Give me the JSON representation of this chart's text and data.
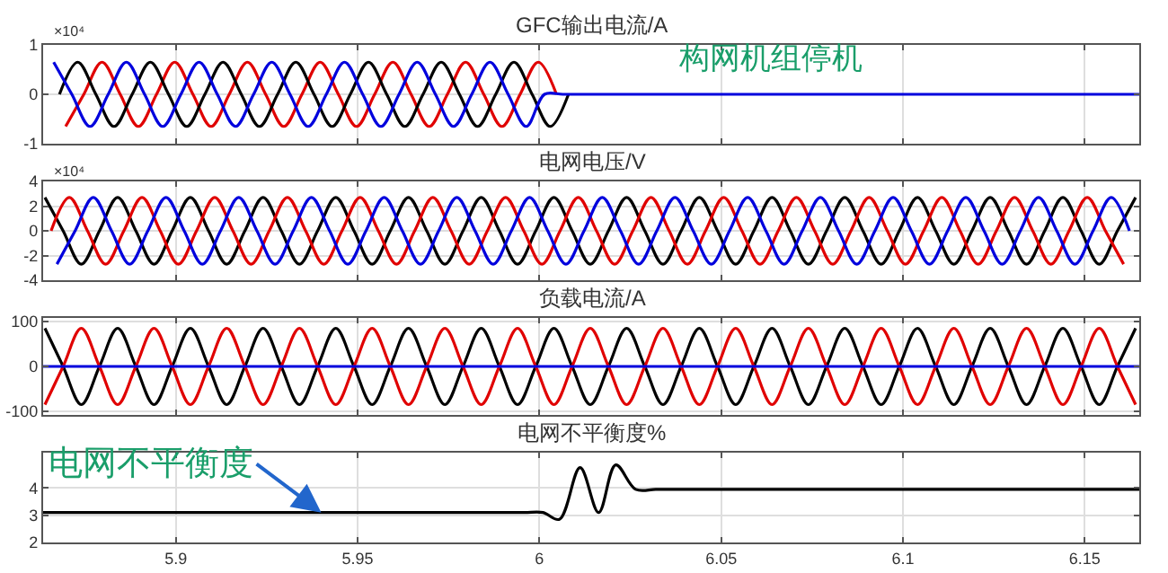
{
  "chart_data": [
    {
      "type": "line",
      "title": "GFC输出电流/A",
      "annotations": [
        "×10⁴",
        "构网机组停机"
      ],
      "xlim": [
        5.8635,
        6.165
      ],
      "xticks": [
        5.9,
        5.95,
        6,
        6.05,
        6.1,
        6.15
      ],
      "ylim": [
        -1,
        1
      ],
      "yticks": [
        -1,
        0,
        1
      ],
      "grid": true,
      "tick_labels": "y",
      "series": [
        {
          "color": "#e00000",
          "x": [
            5.8697,
            5.8747,
            5.8797,
            5.8847,
            5.8897,
            5.8947,
            5.8997,
            5.9047,
            5.9097,
            5.9147,
            5.9197,
            5.9247,
            5.9297,
            5.9347,
            5.9397,
            5.9447,
            5.9497,
            5.9547,
            5.9597,
            5.9647,
            5.9697,
            5.9747,
            5.9797,
            5.9847,
            5.9897,
            5.9947,
            5.9997,
            6.0047
          ],
          "values": [
            -0.65,
            0,
            0.65,
            0,
            -0.65,
            0,
            0.65,
            0,
            -0.65,
            0,
            0.65,
            0,
            -0.65,
            0,
            0.65,
            0,
            -0.65,
            0,
            0.65,
            0,
            -0.65,
            0,
            0.65,
            0,
            -0.65,
            0,
            0.65,
            0
          ]
        },
        {
          "color": "#000000",
          "x": [
            5.868,
            5.873,
            5.878,
            5.883,
            5.888,
            5.893,
            5.898,
            5.903,
            5.908,
            5.913,
            5.918,
            5.923,
            5.928,
            5.933,
            5.938,
            5.943,
            5.948,
            5.953,
            5.958,
            5.963,
            5.968,
            5.973,
            5.978,
            5.983,
            5.988,
            5.993,
            5.998,
            6.003,
            6.008
          ],
          "values": [
            0,
            0.65,
            0,
            -0.65,
            0,
            0.65,
            0,
            -0.65,
            0,
            0.65,
            0,
            -0.65,
            0,
            0.65,
            0,
            -0.65,
            0,
            0.65,
            0,
            -0.65,
            0,
            0.65,
            0,
            -0.65,
            0,
            0.65,
            0,
            -0.65,
            0
          ]
        },
        {
          "color": "#0000dd",
          "x": [
            5.8664,
            5.8714,
            5.8764,
            5.8814,
            5.8864,
            5.8914,
            5.8964,
            5.9014,
            5.9064,
            5.9114,
            5.9164,
            5.9214,
            5.9264,
            5.9314,
            5.9364,
            5.9414,
            5.9464,
            5.9514,
            5.9564,
            5.9614,
            5.9664,
            5.9714,
            5.9764,
            5.9814,
            5.9864,
            5.9914,
            5.9964,
            6.0014,
            6.0064,
            6.0114,
            6.02,
            6.05,
            6.1,
            6.15,
            6.165
          ],
          "values": [
            0.65,
            0,
            -0.65,
            0,
            0.65,
            0,
            -0.65,
            0,
            0.65,
            0,
            -0.65,
            0,
            0.65,
            0,
            -0.65,
            0,
            0.65,
            0,
            -0.65,
            0,
            0.65,
            0,
            -0.65,
            0,
            0.65,
            0,
            -0.65,
            0,
            0,
            0,
            0,
            0,
            0,
            0,
            0
          ]
        }
      ]
    },
    {
      "type": "line",
      "title": "电网电压/V",
      "annotations": [
        "×10⁴"
      ],
      "xlim": [
        5.8635,
        6.165
      ],
      "xticks": [
        5.9,
        5.95,
        6,
        6.05,
        6.1,
        6.15
      ],
      "ylim": [
        -4,
        4
      ],
      "yticks": [
        -4,
        -2,
        0,
        2,
        4
      ],
      "grid": true,
      "tick_labels": "y",
      "series": [
        {
          "color": "#000000",
          "x": [
            5.864,
            5.869,
            5.874,
            5.879,
            5.884,
            5.889,
            5.894,
            5.899,
            5.904,
            5.909,
            5.914,
            5.919,
            5.924,
            5.929,
            5.934,
            5.939,
            5.944,
            5.949,
            5.954,
            5.959,
            5.964,
            5.969,
            5.974,
            5.979,
            5.984,
            5.989,
            5.994,
            5.999,
            6.004,
            6.009,
            6.014,
            6.019,
            6.024,
            6.029,
            6.034,
            6.039,
            6.044,
            6.049,
            6.054,
            6.059,
            6.064,
            6.069,
            6.074,
            6.079,
            6.084,
            6.089,
            6.094,
            6.099,
            6.104,
            6.109,
            6.114,
            6.119,
            6.124,
            6.129,
            6.134,
            6.139,
            6.144,
            6.149,
            6.154,
            6.159,
            6.164
          ],
          "values": [
            2.7,
            0,
            -2.7,
            0,
            2.7,
            0,
            -2.7,
            0,
            2.7,
            0,
            -2.7,
            0,
            2.7,
            0,
            -2.7,
            0,
            2.7,
            0,
            -2.7,
            0,
            2.7,
            0,
            -2.7,
            0,
            2.7,
            0,
            -2.7,
            0,
            2.7,
            0,
            -2.7,
            0,
            2.7,
            0,
            -2.7,
            0,
            2.7,
            0,
            -2.7,
            0,
            2.7,
            0,
            -2.7,
            0,
            2.7,
            0,
            -2.7,
            0,
            2.7,
            0,
            -2.7,
            0,
            2.7,
            0,
            -2.7,
            0,
            2.7,
            0,
            -2.7,
            0,
            2.7
          ]
        },
        {
          "color": "#e00000",
          "x": [
            5.8657,
            5.8707,
            5.8757,
            5.8807,
            5.8857,
            5.8907,
            5.8957,
            5.9007,
            5.9057,
            5.9107,
            5.9157,
            5.9207,
            5.9257,
            5.9307,
            5.9357,
            5.9407,
            5.9457,
            5.9507,
            5.9557,
            5.9607,
            5.9657,
            5.9707,
            5.9757,
            5.9807,
            5.9857,
            5.9907,
            5.9957,
            6.0007,
            6.0057,
            6.0107,
            6.0157,
            6.0207,
            6.0257,
            6.0307,
            6.0357,
            6.0407,
            6.0457,
            6.0507,
            6.0557,
            6.0607,
            6.0657,
            6.0707,
            6.0757,
            6.0807,
            6.0857,
            6.0907,
            6.0957,
            6.1007,
            6.1057,
            6.1107,
            6.1157,
            6.1207,
            6.1257,
            6.1307,
            6.1357,
            6.1407,
            6.1457,
            6.1507,
            6.1557,
            6.1607
          ],
          "values": [
            0,
            2.7,
            0,
            -2.7,
            0,
            2.7,
            0,
            -2.7,
            0,
            2.7,
            0,
            -2.7,
            0,
            2.7,
            0,
            -2.7,
            0,
            2.7,
            0,
            -2.7,
            0,
            2.7,
            0,
            -2.7,
            0,
            2.7,
            0,
            -2.7,
            0,
            2.7,
            0,
            -2.7,
            0,
            2.7,
            0,
            -2.7,
            0,
            2.7,
            0,
            -2.7,
            0,
            2.7,
            0,
            -2.7,
            0,
            2.7,
            0,
            -2.7,
            0,
            2.7,
            0,
            -2.7,
            0,
            2.7,
            0,
            -2.7,
            0,
            2.7,
            0,
            -2.7
          ]
        },
        {
          "color": "#0000dd",
          "x": [
            5.8673,
            5.8723,
            5.8773,
            5.8823,
            5.8873,
            5.8923,
            5.8973,
            5.9023,
            5.9073,
            5.9123,
            5.9173,
            5.9223,
            5.9273,
            5.9323,
            5.9373,
            5.9423,
            5.9473,
            5.9523,
            5.9573,
            5.9623,
            5.9673,
            5.9723,
            5.9773,
            5.9823,
            5.9873,
            5.9923,
            5.9973,
            6.0023,
            6.0073,
            6.0123,
            6.0173,
            6.0223,
            6.0273,
            6.0323,
            6.0373,
            6.0423,
            6.0473,
            6.0523,
            6.0573,
            6.0623,
            6.0673,
            6.0723,
            6.0773,
            6.0823,
            6.0873,
            6.0923,
            6.0973,
            6.1023,
            6.1073,
            6.1123,
            6.1173,
            6.1223,
            6.1273,
            6.1323,
            6.1373,
            6.1423,
            6.1473,
            6.1523,
            6.1573,
            6.1623
          ],
          "values": [
            -2.7,
            0,
            2.7,
            0,
            -2.7,
            0,
            2.7,
            0,
            -2.7,
            0,
            2.7,
            0,
            -2.7,
            0,
            2.7,
            0,
            -2.7,
            0,
            2.7,
            0,
            -2.7,
            0,
            2.7,
            0,
            -2.7,
            0,
            2.7,
            0,
            -2.7,
            0,
            2.7,
            0,
            -2.7,
            0,
            2.7,
            0,
            -2.7,
            0,
            2.7,
            0,
            -2.7,
            0,
            2.7,
            0,
            -2.7,
            0,
            2.7,
            0,
            -2.7,
            0,
            2.7,
            0,
            -2.7,
            0,
            2.7,
            0,
            -2.7,
            0,
            2.7,
            0
          ]
        }
      ]
    },
    {
      "type": "line",
      "title": "负载电流/A",
      "xlim": [
        5.8635,
        6.165
      ],
      "xticks": [
        5.9,
        5.95,
        6,
        6.05,
        6.1,
        6.15
      ],
      "ylim": [
        -108,
        108
      ],
      "yticks": [
        -100,
        0,
        100
      ],
      "grid": true,
      "tick_labels": "y",
      "series": [
        {
          "color": "#000000",
          "x": [
            5.864,
            5.869,
            5.874,
            5.879,
            5.884,
            5.889,
            5.894,
            5.899,
            5.904,
            5.909,
            5.914,
            5.919,
            5.924,
            5.929,
            5.934,
            5.939,
            5.944,
            5.949,
            5.954,
            5.959,
            5.964,
            5.969,
            5.974,
            5.979,
            5.984,
            5.989,
            5.994,
            5.999,
            6.004,
            6.009,
            6.014,
            6.019,
            6.024,
            6.029,
            6.034,
            6.039,
            6.044,
            6.049,
            6.054,
            6.059,
            6.064,
            6.069,
            6.074,
            6.079,
            6.084,
            6.089,
            6.094,
            6.099,
            6.104,
            6.109,
            6.114,
            6.119,
            6.124,
            6.129,
            6.134,
            6.139,
            6.144,
            6.149,
            6.154,
            6.159,
            6.164
          ],
          "values": [
            85,
            0,
            -85,
            0,
            85,
            0,
            -85,
            0,
            85,
            0,
            -85,
            0,
            85,
            0,
            -85,
            0,
            85,
            0,
            -85,
            0,
            85,
            0,
            -85,
            0,
            85,
            0,
            -85,
            0,
            85,
            0,
            -85,
            0,
            85,
            0,
            -85,
            0,
            85,
            0,
            -85,
            0,
            85,
            0,
            -85,
            0,
            85,
            0,
            -85,
            0,
            85,
            0,
            -85,
            0,
            85,
            0,
            -85,
            0,
            85,
            0,
            -85,
            0,
            85
          ]
        },
        {
          "color": "#e00000",
          "x": [
            5.864,
            5.869,
            5.874,
            5.879,
            5.884,
            5.889,
            5.894,
            5.899,
            5.904,
            5.909,
            5.914,
            5.919,
            5.924,
            5.929,
            5.934,
            5.939,
            5.944,
            5.949,
            5.954,
            5.959,
            5.964,
            5.969,
            5.974,
            5.979,
            5.984,
            5.989,
            5.994,
            5.999,
            6.004,
            6.009,
            6.014,
            6.019,
            6.024,
            6.029,
            6.034,
            6.039,
            6.044,
            6.049,
            6.054,
            6.059,
            6.064,
            6.069,
            6.074,
            6.079,
            6.084,
            6.089,
            6.094,
            6.099,
            6.104,
            6.109,
            6.114,
            6.119,
            6.124,
            6.129,
            6.134,
            6.139,
            6.144,
            6.149,
            6.154,
            6.159,
            6.164
          ],
          "values": [
            -85,
            0,
            85,
            0,
            -85,
            0,
            85,
            0,
            -85,
            0,
            85,
            0,
            -85,
            0,
            85,
            0,
            -85,
            0,
            85,
            0,
            -85,
            0,
            85,
            0,
            -85,
            0,
            85,
            0,
            -85,
            0,
            85,
            0,
            -85,
            0,
            85,
            0,
            -85,
            0,
            85,
            0,
            -85,
            0,
            85,
            0,
            -85,
            0,
            85,
            0,
            -85,
            0,
            85,
            0,
            -85,
            0,
            85,
            0,
            -85,
            0,
            85,
            0,
            -85
          ]
        },
        {
          "color": "#0000dd",
          "x": [
            5.8635,
            6.165
          ],
          "values": [
            0,
            0
          ]
        }
      ]
    },
    {
      "type": "line",
      "title": "电网不平衡度%",
      "annotations": [
        {
          "text": "电网不平衡度",
          "x": 5.94,
          "y": 3.1
        }
      ],
      "xlim": [
        5.8635,
        6.165
      ],
      "xticks": [
        5.9,
        5.95,
        6,
        6.05,
        6.1,
        6.15
      ],
      "ylim": [
        2,
        5.3
      ],
      "yticks": [
        2,
        3,
        4
      ],
      "grid": true,
      "series": [
        {
          "color": "#000000",
          "x": [
            5.8635,
            5.9,
            5.95,
            5.99,
            5.996,
            6.001,
            6.0055,
            6.0112,
            6.0163,
            6.021,
            6.0265,
            6.032,
            6.038,
            6.05,
            6.1,
            6.15,
            6.165
          ],
          "values": [
            3.1,
            3.1,
            3.1,
            3.1,
            3.1,
            3.1,
            2.85,
            4.75,
            3.1,
            4.85,
            3.95,
            3.95,
            3.95,
            3.95,
            3.95,
            3.95,
            3.95
          ]
        }
      ]
    }
  ]
}
